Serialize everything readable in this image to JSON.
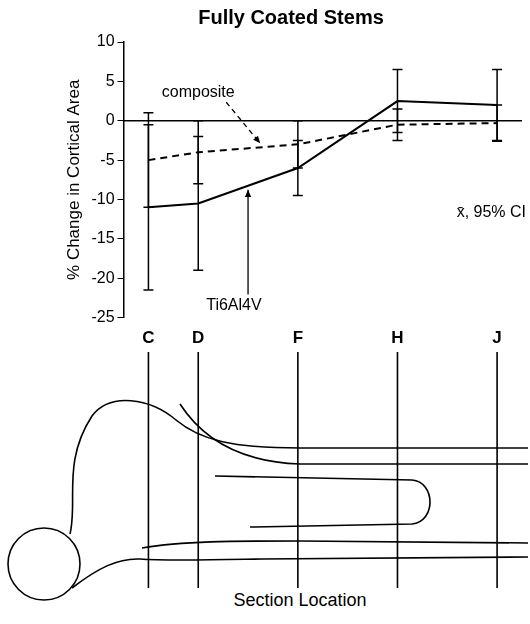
{
  "chart_data": {
    "type": "line",
    "title": "Fully Coated Stems",
    "y_label": "% Change in Cortical Area",
    "x_label": "Section Location",
    "annotation": "x̄, 95% CI",
    "categories": [
      "C",
      "D",
      null,
      "F",
      null,
      "H",
      null,
      "J"
    ],
    "series": [
      {
        "name": "composite",
        "color": "#000000",
        "line_style": "dashed",
        "marker": "none",
        "values": [
          -5,
          -4,
          null,
          -3,
          null,
          -0.5,
          null,
          -0.3
        ],
        "error": [
          6,
          4,
          null,
          3,
          null,
          2,
          null,
          2.3
        ]
      },
      {
        "name": "Ti6Al4V",
        "color": "#000000",
        "line_style": "solid",
        "marker": "none",
        "values": [
          -11,
          -10.5,
          null,
          -6,
          null,
          2.5,
          null,
          2
        ],
        "error": [
          10.5,
          8.5,
          null,
          3.5,
          null,
          4,
          null,
          4.5
        ]
      }
    ],
    "ylim": [
      -25,
      10
    ],
    "yticks": [
      -25,
      -20,
      -15,
      -10,
      -5,
      0,
      5,
      10
    ],
    "reference_line": 0,
    "grid": false
  }
}
